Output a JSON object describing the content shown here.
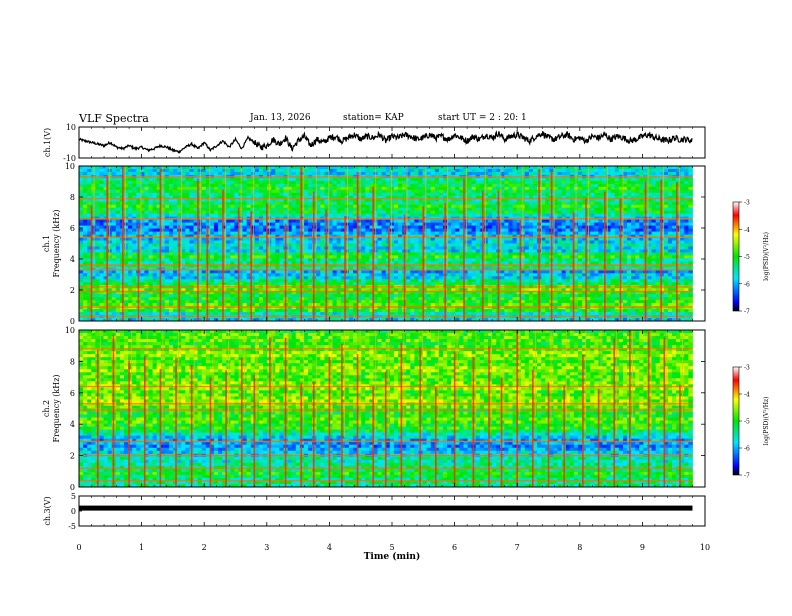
{
  "header": {
    "title": "VLF Spectra",
    "date": "Jan. 13, 2026",
    "station": "station= KAP",
    "start": "start UT =  2 : 20: 1"
  },
  "chart_data": [
    {
      "type": "line",
      "name": "ch1-waveform",
      "ylabel": "ch.1(V)",
      "ylim": [
        -10,
        10
      ],
      "yticks": [
        "10",
        "-10"
      ],
      "xlim": [
        0,
        10
      ],
      "x": [
        0,
        0.1,
        0.2,
        0.3,
        0.4,
        0.5,
        0.6,
        0.7,
        0.8,
        0.9,
        1.0,
        1.1,
        1.2,
        1.3,
        1.4,
        1.5,
        1.6,
        1.7,
        1.8,
        1.9,
        2.0,
        2.1,
        2.2,
        2.3,
        2.4,
        2.5,
        2.6,
        2.7,
        2.8,
        2.9,
        3.0,
        3.1,
        3.2,
        3.3,
        3.4,
        3.5,
        3.6,
        3.7,
        3.8,
        3.9,
        4.0,
        4.1,
        4.2,
        4.3,
        4.4,
        4.5,
        4.6,
        4.7,
        4.8,
        4.9,
        5.0,
        5.1,
        5.2,
        5.3,
        5.4,
        5.5,
        5.6,
        5.7,
        5.8,
        5.9,
        6.0,
        6.1,
        6.2,
        6.3,
        6.4,
        6.5,
        6.6,
        6.7,
        6.8,
        6.9,
        7.0,
        7.1,
        7.2,
        7.3,
        7.4,
        7.5,
        7.6,
        7.7,
        7.8,
        7.9,
        8.0,
        8.1,
        8.2,
        8.3,
        8.4,
        8.5,
        8.6,
        8.7,
        8.8,
        8.9,
        9.0,
        9.1,
        9.2,
        9.3,
        9.4,
        9.5,
        9.6,
        9.7,
        9.8
      ],
      "values": [
        2,
        1,
        0,
        -1,
        -2,
        0,
        -3,
        -4,
        -2,
        -4,
        -3,
        -5,
        -4,
        -2,
        -3,
        -5,
        -6,
        -3,
        -1,
        -4,
        0,
        -5,
        -2,
        1,
        -3,
        2,
        -4,
        3,
        0,
        -3,
        -2,
        2,
        -1,
        3,
        -4,
        1,
        4,
        -2,
        2,
        0,
        3,
        4,
        1,
        3,
        5,
        2,
        4,
        3,
        5,
        1,
        4,
        3,
        5,
        4,
        2,
        3,
        5,
        3,
        4,
        2,
        5,
        3,
        1,
        4,
        2,
        5,
        3,
        6,
        2,
        4,
        5,
        3,
        1,
        4,
        6,
        3,
        2,
        4,
        5,
        2,
        3,
        1,
        4,
        3,
        5,
        2,
        4,
        3,
        1,
        2,
        4,
        5,
        3,
        2,
        1,
        3,
        2,
        2,
        1
      ]
    },
    {
      "type": "heatmap",
      "name": "ch1-spectrogram",
      "ylabel_line1": "ch.1",
      "ylabel_line2": "Frequency (kHz)",
      "ylim": [
        0,
        10
      ],
      "yticks": [
        0,
        2,
        4,
        6,
        8,
        10
      ],
      "xlim": [
        0,
        10
      ],
      "colorbar": {
        "label": "log(PSD)(V²/Hz)",
        "range": [
          -7,
          -3
        ],
        "ticks": [
          "-3",
          "-4",
          "-5",
          "-6",
          "-7"
        ]
      },
      "freq_profile": [
        0.3,
        0.35,
        0.5,
        0.55,
        0.55,
        0.5,
        0.45,
        0.5,
        0.55,
        0.45,
        0.4,
        0.3,
        0.25,
        0.35,
        0.45,
        0.4,
        0.5,
        0.45,
        0.3,
        0.35,
        0.3,
        0.28,
        0.25,
        0.2,
        0.2,
        0.22,
        0.3,
        0.35,
        0.45,
        0.5,
        0.45,
        0.4,
        0.4,
        0.45,
        0.5,
        0.45,
        0.4,
        0.3,
        0.3,
        0.35
      ],
      "bright_bands_khz": [
        0.3,
        0.9,
        1.9,
        2.2,
        3.3,
        3.6,
        5.4,
        6.6,
        7.9,
        9.3
      ],
      "burst_times_min": [
        0.2,
        0.45,
        0.7,
        0.95,
        1.3,
        1.6,
        1.9,
        2.05,
        2.3,
        2.55,
        2.75,
        3.0,
        3.3,
        3.55,
        3.75,
        3.95,
        4.25,
        4.45,
        4.7,
        4.95,
        5.2,
        5.5,
        5.85,
        6.15,
        6.45,
        6.7,
        7.05,
        7.35,
        7.55,
        7.9,
        8.1,
        8.4,
        8.65,
        9.05,
        9.3,
        9.55
      ]
    },
    {
      "type": "heatmap",
      "name": "ch2-spectrogram",
      "ylabel_line1": "ch.2",
      "ylabel_line2": "Frequency (kHz)",
      "ylim": [
        0,
        10
      ],
      "yticks": [
        0,
        2,
        4,
        6,
        8,
        10
      ],
      "xlim": [
        0,
        10
      ],
      "colorbar": {
        "label": "log(PSD)(V²/Hz)",
        "range": [
          -7,
          -3
        ],
        "ticks": [
          "-3",
          "-4",
          "-5",
          "-6",
          "-7"
        ]
      },
      "freq_profile": [
        0.4,
        0.4,
        0.45,
        0.5,
        0.45,
        0.4,
        0.35,
        0.38,
        0.3,
        0.25,
        0.22,
        0.25,
        0.3,
        0.35,
        0.45,
        0.5,
        0.55,
        0.55,
        0.5,
        0.5,
        0.55,
        0.6,
        0.6,
        0.55,
        0.55,
        0.6,
        0.6,
        0.55,
        0.55,
        0.6,
        0.6,
        0.55,
        0.55,
        0.6,
        0.6,
        0.55,
        0.5,
        0.55,
        0.55,
        0.5
      ],
      "bright_bands_khz": [
        0.4,
        1.2,
        2.0,
        2.9,
        4.9,
        5.3,
        6.4,
        8.8
      ],
      "burst_times_min": [
        0.3,
        0.55,
        0.8,
        1.05,
        1.3,
        1.55,
        1.8,
        2.1,
        2.35,
        2.6,
        2.8,
        3.05,
        3.3,
        3.55,
        3.75,
        4.0,
        4.2,
        4.45,
        4.7,
        4.9,
        5.15,
        5.45,
        5.7,
        6.0,
        6.3,
        6.55,
        6.75,
        7.0,
        7.25,
        7.5,
        7.75,
        8.05,
        8.3,
        8.55,
        8.8,
        9.1,
        9.35,
        9.6
      ]
    },
    {
      "type": "line",
      "name": "ch3-waveform",
      "ylabel": "ch.3(V)",
      "ylim": [
        -5,
        5
      ],
      "yticks": [
        "5",
        "0",
        "-5"
      ],
      "xlim": [
        0,
        10
      ],
      "xticks": [
        "0",
        "1",
        "2",
        "3",
        "4",
        "5",
        "6",
        "7",
        "8",
        "9",
        "10"
      ],
      "xlabel": "Time (min)",
      "x": [
        0,
        9.8
      ],
      "values": [
        0.8,
        0.8
      ]
    }
  ]
}
